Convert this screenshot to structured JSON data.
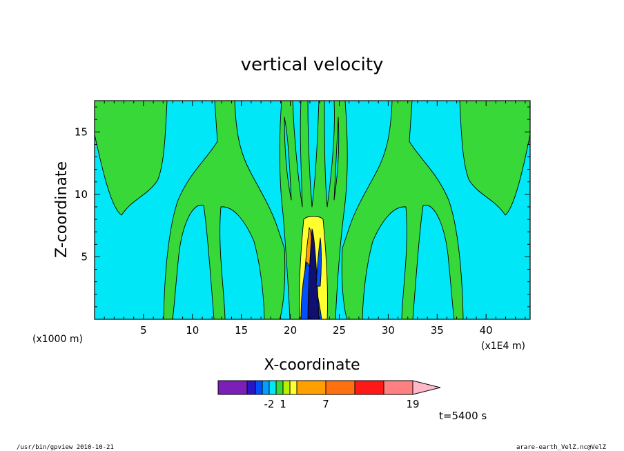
{
  "chart_data": {
    "type": "heatmap",
    "title": "vertical velocity",
    "xlabel": "X-coordinate",
    "ylabel": "Z-coordinate",
    "x_unit": "(x1000 m)",
    "y_unit": "(x1E4 m)",
    "xlim": [
      0,
      44.5
    ],
    "ylim": [
      0,
      17.5
    ],
    "xticks": [
      {
        "value": 5,
        "label": "5"
      },
      {
        "value": 10,
        "label": "10"
      },
      {
        "value": 15,
        "label": "15"
      },
      {
        "value": 20,
        "label": "20"
      },
      {
        "value": 25,
        "label": "25"
      },
      {
        "value": 30,
        "label": "30"
      },
      {
        "value": 35,
        "label": "35"
      },
      {
        "value": 40,
        "label": "40"
      }
    ],
    "yticks": [
      {
        "value": 5,
        "label": "5"
      },
      {
        "value": 10,
        "label": "10"
      },
      {
        "value": 15,
        "label": "15"
      }
    ],
    "colorbar": {
      "colors": [
        "#7b1fb8",
        "#2a14c8",
        "#0050ff",
        "#00a0ff",
        "#00e8f8",
        "#38d838",
        "#b8f000",
        "#ffff30",
        "#ffa000",
        "#ff7010",
        "#ff1818",
        "#ff8080",
        "#ffb8c8"
      ],
      "labels": [
        {
          "after_index": 3,
          "text": "-2"
        },
        {
          "after_index": 5,
          "text": "1"
        },
        {
          "after_index": 8,
          "text": "7"
        },
        {
          "after_index": 11,
          "text": "19"
        }
      ]
    },
    "time_label": "t=5400 s",
    "palette": {
      "cyan": "#00e8f8",
      "green": "#38d838",
      "yellow": "#ffff30",
      "blue": "#0050ff",
      "navy": "#101070",
      "orange": "#ffa000"
    }
  },
  "footer": {
    "left": "/usr/bin/gpview  2010-10-21",
    "right": "arare-earth_VelZ.nc@VelZ"
  }
}
